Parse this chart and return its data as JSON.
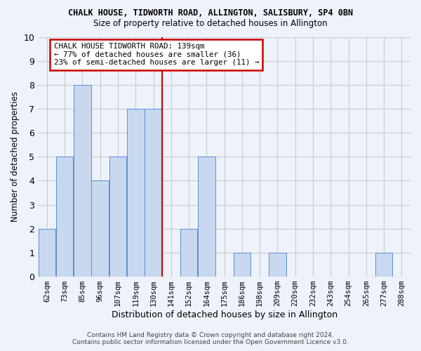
{
  "title": "CHALK HOUSE, TIDWORTH ROAD, ALLINGTON, SALISBURY, SP4 0BN",
  "subtitle": "Size of property relative to detached houses in Allington",
  "xlabel": "Distribution of detached houses by size in Allington",
  "ylabel": "Number of detached properties",
  "categories": [
    "62sqm",
    "73sqm",
    "85sqm",
    "96sqm",
    "107sqm",
    "119sqm",
    "130sqm",
    "141sqm",
    "152sqm",
    "164sqm",
    "175sqm",
    "186sqm",
    "198sqm",
    "209sqm",
    "220sqm",
    "232sqm",
    "243sqm",
    "254sqm",
    "265sqm",
    "277sqm",
    "288sqm"
  ],
  "values": [
    2,
    5,
    8,
    4,
    5,
    7,
    7,
    0,
    2,
    5,
    0,
    1,
    0,
    1,
    0,
    0,
    0,
    0,
    0,
    1,
    0
  ],
  "bar_color": "#c8d9ef",
  "bar_edge_color": "#5b8dd9",
  "highlight_line_color": "#cc0000",
  "annotation_box_text": "CHALK HOUSE TIDWORTH ROAD: 139sqm\n← 77% of detached houses are smaller (36)\n23% of semi-detached houses are larger (11) →",
  "annotation_box_color": "#cc0000",
  "ylim": [
    0,
    10
  ],
  "yticks": [
    0,
    1,
    2,
    3,
    4,
    5,
    6,
    7,
    8,
    9,
    10
  ],
  "grid_color": "#cccccc",
  "background_color": "#eef2fa",
  "footer_line1": "Contains HM Land Registry data © Crown copyright and database right 2024.",
  "footer_line2": "Contains public sector information licensed under the Open Government Licence v3.0."
}
